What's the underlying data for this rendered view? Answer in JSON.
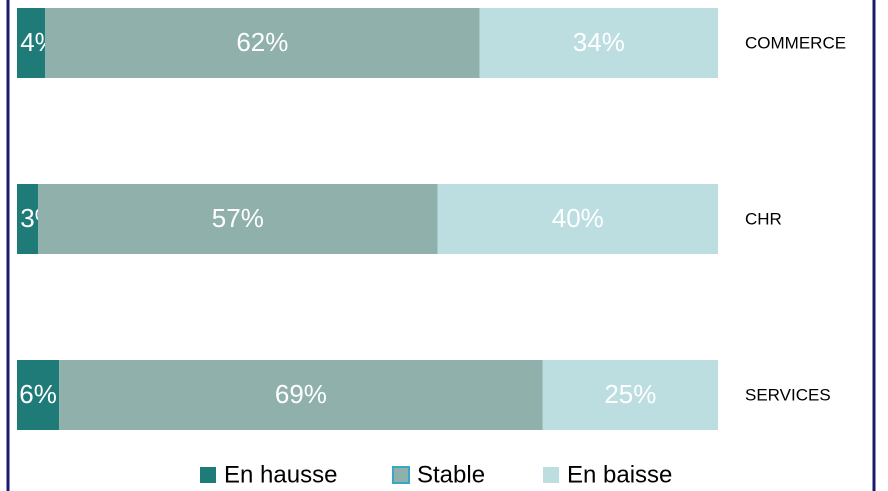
{
  "chart_data": {
    "type": "stacked-bar-horizontal",
    "categories": [
      "COMMERCE",
      "CHR",
      "SERVICES"
    ],
    "series": [
      {
        "name": "En hausse",
        "color": "#1f7b78",
        "values": [
          4,
          3,
          6
        ],
        "value_labels": [
          "4%",
          "3%",
          "6%"
        ]
      },
      {
        "name": "Stable",
        "color": "#8fb0ab",
        "values": [
          62,
          57,
          69
        ],
        "value_labels": [
          "62%",
          "57%",
          "69%"
        ]
      },
      {
        "name": "En baisse",
        "color": "#bcdee1",
        "values": [
          34,
          40,
          25
        ],
        "value_labels": [
          "34%",
          "40%",
          "25%"
        ]
      }
    ],
    "legend": "bottom"
  }
}
